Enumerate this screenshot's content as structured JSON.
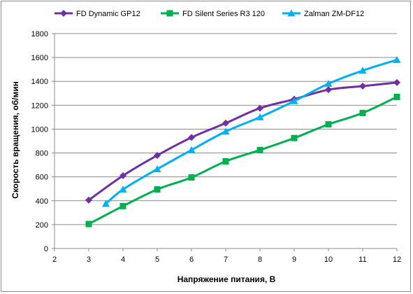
{
  "chart_data": {
    "type": "line",
    "title": "",
    "xlabel": "Напряжение питания, В",
    "ylabel": "Скорость вращения, об/мин",
    "xlim": [
      2,
      12
    ],
    "ylim": [
      0,
      1800
    ],
    "x_ticks": [
      "2",
      "3",
      "4",
      "5",
      "6",
      "7",
      "8",
      "9",
      "10",
      "11",
      "12"
    ],
    "y_ticks": [
      "0",
      "200",
      "400",
      "600",
      "800",
      "1000",
      "1200",
      "1400",
      "1600",
      "1800"
    ],
    "grid": "horizontal",
    "legend_position": "top",
    "series": [
      {
        "name": "FD Dynamic GP12",
        "color": "#7030a0",
        "marker": "diamond",
        "x": [
          3,
          4,
          5,
          6,
          7,
          8,
          9,
          10,
          11,
          12
        ],
        "values": [
          405,
          610,
          780,
          930,
          1050,
          1175,
          1250,
          1330,
          1360,
          1390
        ]
      },
      {
        "name": "FD Silent Series R3 120",
        "color": "#00b050",
        "marker": "square",
        "x": [
          3,
          4,
          5,
          6,
          7,
          8,
          9,
          10,
          11,
          12
        ],
        "values": [
          205,
          355,
          495,
          595,
          730,
          825,
          925,
          1040,
          1135,
          1270
        ]
      },
      {
        "name": "Zalman ZM-DF12",
        "color": "#00b0f0",
        "marker": "triangle",
        "x": [
          3.5,
          4,
          5,
          6,
          7,
          8,
          9,
          10,
          11,
          12
        ],
        "values": [
          375,
          495,
          665,
          825,
          980,
          1100,
          1235,
          1380,
          1490,
          1580
        ]
      }
    ]
  }
}
